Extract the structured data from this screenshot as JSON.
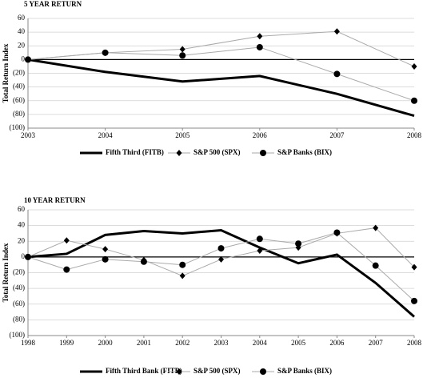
{
  "chart_data": [
    {
      "type": "line",
      "title": "5 YEAR RETURN",
      "y_label": "Total Return Index",
      "categories": [
        "2003",
        "2004",
        "2005",
        "2006",
        "2007",
        "2008"
      ],
      "ylim": [
        -100,
        60
      ],
      "yticks": [
        {
          "value": -100,
          "label": "(100)"
        },
        {
          "value": -80,
          "label": "(80)"
        },
        {
          "value": -60,
          "label": "(60)"
        },
        {
          "value": -40,
          "label": "(40)"
        },
        {
          "value": -20,
          "label": "(20)"
        },
        0,
        20,
        40,
        60
      ],
      "grid": true,
      "series": [
        {
          "name": "Fifth Third (FITB)",
          "color": "#000000",
          "line_width": 3,
          "marker": "none",
          "values": [
            0,
            -18,
            -32,
            -24,
            -50,
            -82
          ]
        },
        {
          "name": "S&P 500 (SPX)",
          "color": "#000000",
          "line_color": "#aaaaaa",
          "line_width": 1,
          "marker": "diamond",
          "values": [
            0,
            10,
            15,
            34,
            41,
            -10
          ]
        },
        {
          "name": "S&P Banks (BIX)",
          "color": "#000000",
          "line_color": "#aaaaaa",
          "line_width": 1,
          "marker": "circle",
          "values": [
            0,
            10,
            6,
            18,
            -21,
            -60
          ]
        }
      ]
    },
    {
      "type": "line",
      "title": "10 YEAR RETURN",
      "y_label": "Total Return Index",
      "categories": [
        "1998",
        "1999",
        "2000",
        "2001",
        "2002",
        "2003",
        "2004",
        "2005",
        "2006",
        "2007",
        "2008"
      ],
      "ylim": [
        -100,
        60
      ],
      "yticks": [
        {
          "value": -100,
          "label": "(100)"
        },
        {
          "value": -80,
          "label": "(80)"
        },
        {
          "value": -60,
          "label": "(60)"
        },
        {
          "value": -40,
          "label": "(40)"
        },
        {
          "value": -20,
          "label": "(20)"
        },
        0,
        20,
        40,
        60
      ],
      "grid": true,
      "series": [
        {
          "name": "Fifth Third Bank (FITB)",
          "color": "#000000",
          "line_width": 3,
          "marker": "none",
          "values": [
            0,
            4,
            28,
            33,
            30,
            34,
            12,
            -8,
            3,
            -33,
            -76
          ]
        },
        {
          "name": "S&P 500 (SPX)",
          "color": "#000000",
          "line_color": "#aaaaaa",
          "line_width": 1,
          "marker": "diamond",
          "values": [
            0,
            21,
            10,
            -4,
            -24,
            -3,
            8,
            12,
            30,
            37,
            -13
          ]
        },
        {
          "name": "S&P Banks (BIX)",
          "color": "#000000",
          "line_color": "#aaaaaa",
          "line_width": 1,
          "marker": "circle",
          "values": [
            0,
            -16,
            -3,
            -6,
            -10,
            11,
            23,
            17,
            31,
            -11,
            -56
          ]
        }
      ]
    }
  ]
}
